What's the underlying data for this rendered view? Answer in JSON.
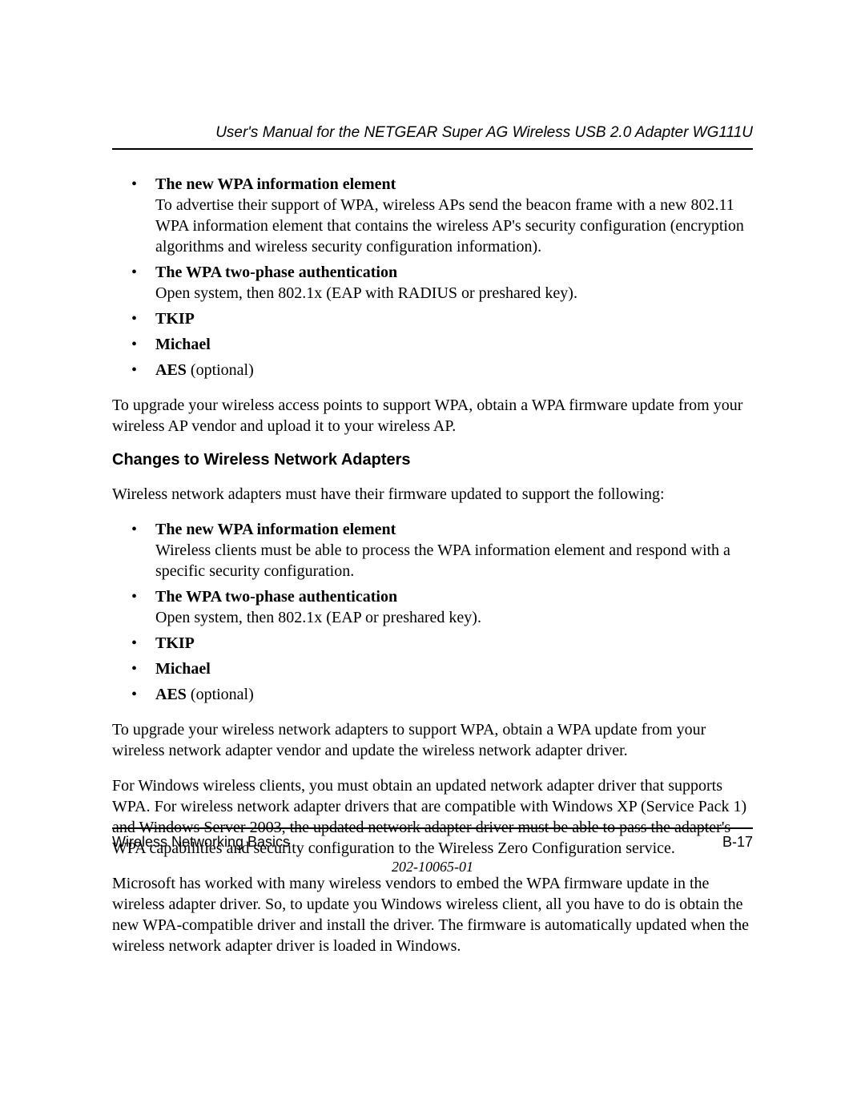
{
  "header": {
    "title": "User's Manual for the NETGEAR Super AG Wireless USB 2.0 Adapter WG111U"
  },
  "section1": {
    "bullets": [
      {
        "title": "The new WPA information element",
        "body": "To advertise their support of WPA, wireless APs send the beacon frame with a new 802.11 WPA information element that contains the wireless AP's security configuration (encryption algorithms and wireless security configuration information)."
      },
      {
        "title": "The WPA two-phase authentication",
        "body": "Open system, then 802.1x (EAP with RADIUS or preshared key)."
      },
      {
        "title": "TKIP",
        "body": ""
      },
      {
        "title": "Michael",
        "body": ""
      },
      {
        "title": "AES",
        "suffix": " (optional)",
        "body": ""
      }
    ],
    "closing": "To upgrade your wireless access points to support WPA, obtain a WPA firmware update from your wireless AP vendor and upload it to your wireless AP."
  },
  "section2": {
    "heading": "Changes to Wireless Network Adapters",
    "intro": "Wireless network adapters must have their firmware updated to support the following:",
    "bullets": [
      {
        "title": "The new WPA information element",
        "body": "Wireless clients must be able to process the WPA information element and respond with a specific security configuration."
      },
      {
        "title": "The WPA two-phase authentication",
        "body": "Open system, then 802.1x (EAP or preshared key)."
      },
      {
        "title": "TKIP",
        "body": ""
      },
      {
        "title": "Michael",
        "body": ""
      },
      {
        "title": "AES",
        "suffix": " (optional)",
        "body": ""
      }
    ],
    "para1": "To upgrade your wireless network adapters to support WPA, obtain a WPA update from your wireless network adapter vendor and update the wireless network adapter driver.",
    "para2": "For Windows wireless clients, you must obtain an updated network adapter driver that supports WPA. For wireless network adapter drivers that are compatible with Windows XP (Service Pack 1) and Windows Server 2003, the updated network adapter driver must be able to pass the adapter's WPA capabilities and security configuration to the Wireless Zero Configuration service.",
    "para3": "Microsoft has worked with many wireless vendors to embed the WPA firmware update in the wireless adapter driver. So, to update you Windows wireless client, all you have to do is obtain the new WPA-compatible driver and install the driver. The firmware is automatically updated when the wireless network adapter driver is loaded in Windows."
  },
  "footer": {
    "left": "Wireless Networking Basics",
    "right": "B-17",
    "docnum": "202-10065-01"
  }
}
